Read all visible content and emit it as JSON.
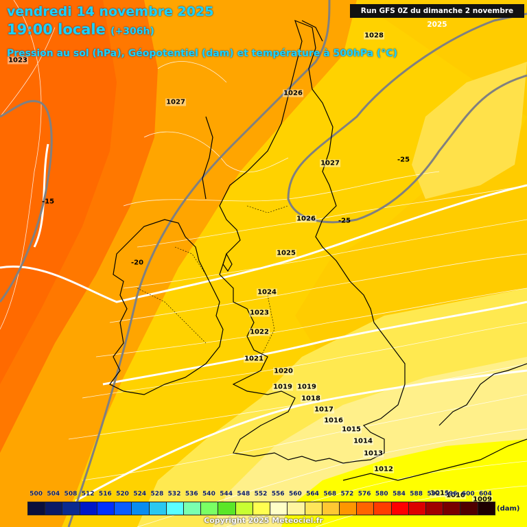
{
  "header": {
    "date": "vendredi 14 novembre 2025",
    "time": "19:00 locale",
    "lead": "(+306h)",
    "subtitle": "Pression au sol (hPa), Géopotentiel (dam) et température à 500hPa (°C)",
    "run": "Run GFS 0Z du dimanche 2 novembre 2025"
  },
  "pressure_labels": [
    "1023",
    "1027",
    "1028",
    "1026",
    "1027",
    "1026",
    "1025",
    "1024",
    "1023",
    "1022",
    "1021",
    "1020",
    "1019",
    "1019",
    "1018",
    "1017",
    "1016",
    "1015",
    "1014",
    "1013",
    "1012",
    "1011",
    "1010",
    "1009"
  ],
  "temp_labels": [
    "-15",
    "-20",
    "-25",
    "-25"
  ],
  "legend": {
    "values": [
      "500",
      "504",
      "508",
      "512",
      "516",
      "520",
      "524",
      "528",
      "532",
      "536",
      "540",
      "544",
      "548",
      "552",
      "556",
      "560",
      "564",
      "568",
      "572",
      "576",
      "580",
      "584",
      "588",
      "592",
      "596",
      "600",
      "604"
    ],
    "colors": [
      "#0a0f3c",
      "#0a1a66",
      "#0a2a90",
      "#0018c8",
      "#0030ff",
      "#0a5cff",
      "#0a8cf0",
      "#2ac8f0",
      "#5affff",
      "#7affb0",
      "#7aff64",
      "#5ae628",
      "#c8ff32",
      "#ffff50",
      "#ffffc8",
      "#fff5a0",
      "#ffe65a",
      "#ffc832",
      "#ff9600",
      "#ff6400",
      "#ff3c00",
      "#ff0000",
      "#dc0000",
      "#a00000",
      "#780000",
      "#500000",
      "#1e0000"
    ],
    "unit": "(dam)"
  },
  "copyright": "Copyright 2025 Meteociel.fr",
  "colors": {
    "title": "#1ad3ff",
    "isotherm": "#808080",
    "isobar": "#ffffff"
  }
}
